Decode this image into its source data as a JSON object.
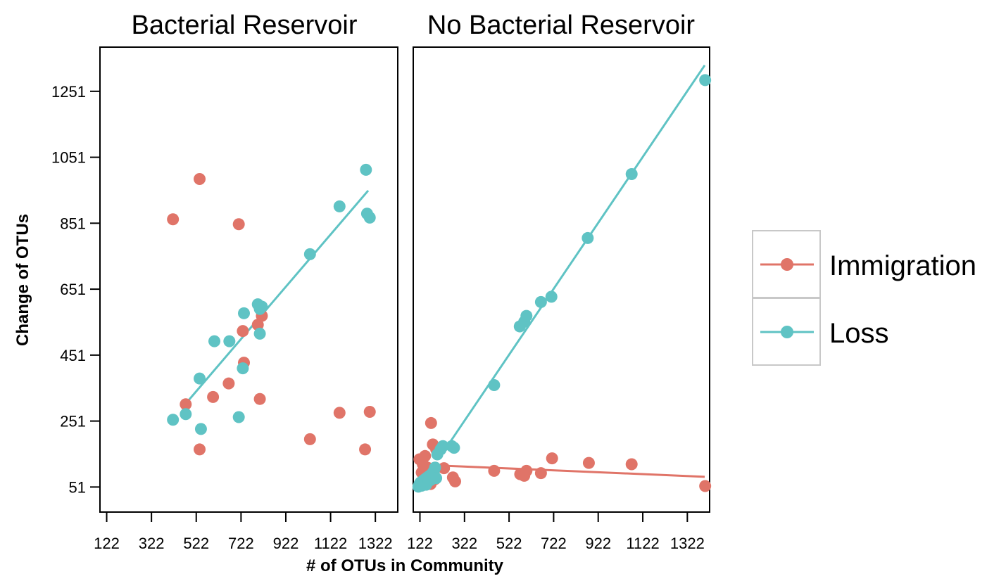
{
  "chart_data": {
    "type": "scatter",
    "ylabel": "Change of OTUs",
    "xlabel": "# of OTUs in Community",
    "xlim": [
      92,
      1422
    ],
    "ylim": [
      -25,
      1385
    ],
    "x_ticks": [
      122,
      322,
      522,
      722,
      922,
      1122,
      1322
    ],
    "y_ticks": [
      51,
      251,
      451,
      651,
      851,
      1051,
      1251
    ],
    "colors": {
      "Immigration": "#e07468",
      "Loss": "#5fc3c4"
    },
    "legend": [
      {
        "label": "Immigration",
        "color": "#e07468"
      },
      {
        "label": "Loss",
        "color": "#5fc3c4"
      }
    ],
    "panels": [
      {
        "title": "Bacterial Reservoir",
        "series": [
          {
            "name": "Immigration",
            "points": [
              [
                418,
                863
              ],
              [
                537,
                985
              ],
              [
                712,
                848
              ],
              [
                537,
                165
              ],
              [
                475,
                302
              ],
              [
                597,
                324
              ],
              [
                667,
                365
              ],
              [
                730,
                524
              ],
              [
                735,
                428
              ],
              [
                797,
                543
              ],
              [
                815,
                570
              ],
              [
                806,
                318
              ],
              [
                1030,
                196
              ],
              [
                1162,
                276
              ],
              [
                1276,
                165
              ],
              [
                1297,
                279
              ]
            ],
            "fit": null
          },
          {
            "name": "Loss",
            "points": [
              [
                418,
                255
              ],
              [
                475,
                272
              ],
              [
                537,
                380
              ],
              [
                543,
                227
              ],
              [
                603,
                493
              ],
              [
                670,
                493
              ],
              [
                712,
                263
              ],
              [
                730,
                411
              ],
              [
                735,
                578
              ],
              [
                797,
                605
              ],
              [
                806,
                591
              ],
              [
                815,
                598
              ],
              [
                806,
                516
              ],
              [
                1030,
                757
              ],
              [
                1162,
                902
              ],
              [
                1280,
                1013
              ],
              [
                1285,
                880
              ],
              [
                1297,
                868
              ]
            ],
            "fit": [
              [
                460,
                292
              ],
              [
                1290,
                950
              ]
            ]
          }
        ]
      },
      {
        "title": "No Bacterial Reservoir",
        "series": [
          {
            "name": "Immigration",
            "points": [
              [
                120,
                135
              ],
              [
                125,
                57
              ],
              [
                130,
                95
              ],
              [
                135,
                120
              ],
              [
                140,
                70
              ],
              [
                145,
                145
              ],
              [
                150,
                85
              ],
              [
                155,
                110
              ],
              [
                160,
                65
              ],
              [
                165,
                90
              ],
              [
                170,
                60
              ],
              [
                172,
                245
              ],
              [
                175,
                80
              ],
              [
                180,
                180
              ],
              [
                185,
                100
              ],
              [
                190,
                75
              ],
              [
                195,
                165
              ],
              [
                230,
                108
              ],
              [
                270,
                80
              ],
              [
                280,
                68
              ],
              [
                455,
                100
              ],
              [
                572,
                90
              ],
              [
                590,
                85
              ],
              [
                600,
                100
              ],
              [
                665,
                93
              ],
              [
                715,
                138
              ],
              [
                880,
                124
              ],
              [
                1072,
                120
              ],
              [
                1402,
                54
              ]
            ],
            "fit": [
              [
                150,
                118
              ],
              [
                1400,
                82
              ]
            ]
          },
          {
            "name": "Loss",
            "points": [
              [
                115,
                52
              ],
              [
                120,
                60
              ],
              [
                125,
                65
              ],
              [
                130,
                55
              ],
              [
                135,
                70
              ],
              [
                140,
                62
              ],
              [
                145,
                75
              ],
              [
                150,
                58
              ],
              [
                155,
                80
              ],
              [
                160,
                68
              ],
              [
                165,
                85
              ],
              [
                170,
                72
              ],
              [
                175,
                90
              ],
              [
                180,
                95
              ],
              [
                185,
                100
              ],
              [
                190,
                110
              ],
              [
                195,
                78
              ],
              [
                200,
                150
              ],
              [
                215,
                165
              ],
              [
                225,
                175
              ],
              [
                265,
                175
              ],
              [
                275,
                170
              ],
              [
                455,
                360
              ],
              [
                570,
                538
              ],
              [
                590,
                552
              ],
              [
                600,
                570
              ],
              [
                665,
                612
              ],
              [
                712,
                628
              ],
              [
                875,
                806
              ],
              [
                1072,
                1000
              ],
              [
                1402,
                1285
              ]
            ],
            "fit": [
              [
                220,
                150
              ],
              [
                1400,
                1330
              ]
            ]
          }
        ]
      }
    ]
  }
}
